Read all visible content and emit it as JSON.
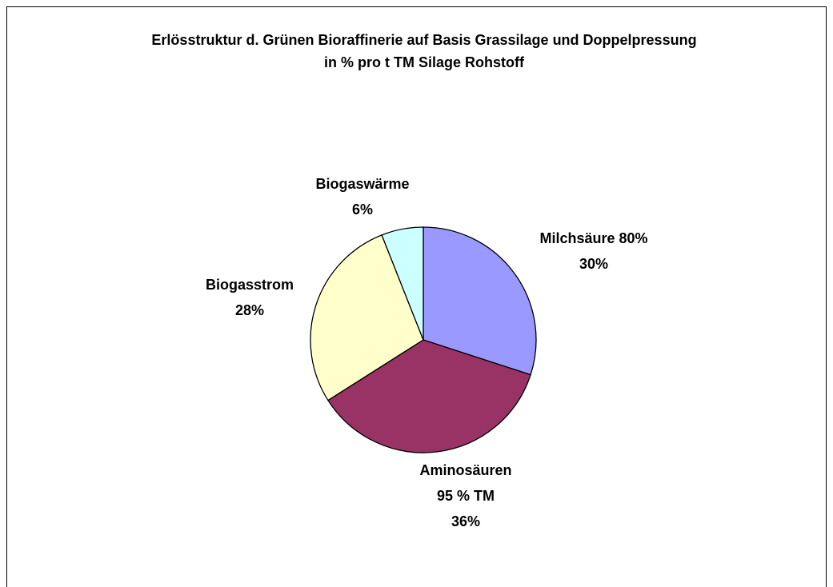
{
  "chart_data": {
    "type": "pie",
    "title": "Erlösstruktur d. Grünen Bioraffinerie auf Basis Grassilage und Doppelpressung in % pro t TM Silage Rohstoff",
    "categories": [
      "Milchsäure 80%",
      "Aminosäuren 95 % TM",
      "Biogasstrom",
      "Biogaswärme"
    ],
    "values": [
      30,
      36,
      28,
      6
    ],
    "value_labels": [
      "30%",
      "36%",
      "28%",
      "6%"
    ],
    "colors": [
      "#9999ff",
      "#993366",
      "#ffffcc",
      "#ccffff"
    ]
  }
}
